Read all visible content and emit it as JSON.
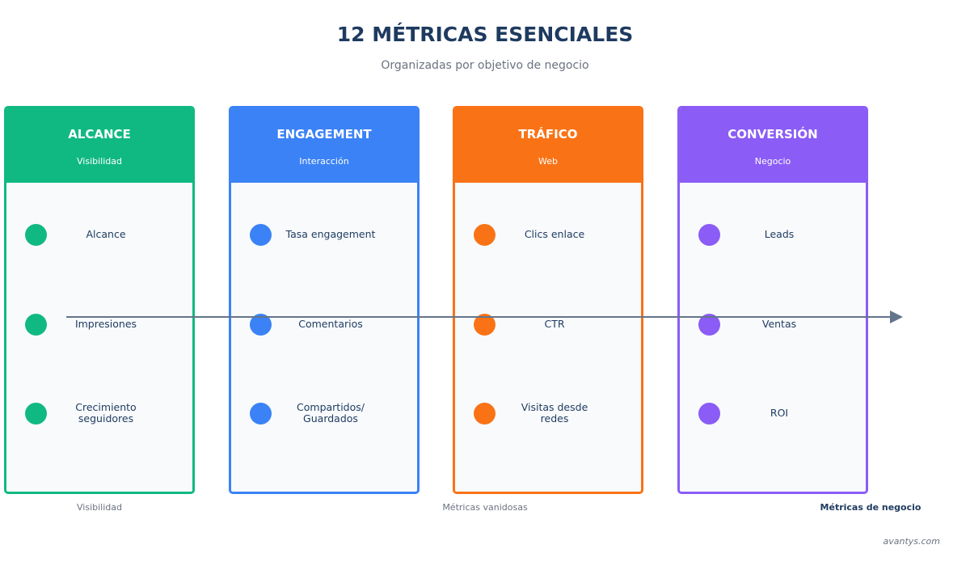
{
  "header": {
    "title": "12 MÉTRICAS ESENCIALES",
    "subtitle": "Organizadas por objetivo de negocio"
  },
  "columns": [
    {
      "title": "ALCANCE",
      "subtitle": "Visibilidad",
      "color": "#10b981",
      "metrics": [
        "Alcance",
        "Impresiones",
        "Crecimiento\nseguidores"
      ]
    },
    {
      "title": "ENGAGEMENT",
      "subtitle": "Interacción",
      "color": "#3b82f6",
      "metrics": [
        "Tasa engagement",
        "Comentarios",
        "Compartidos/\nGuardados"
      ]
    },
    {
      "title": "TRÁFICO",
      "subtitle": "Web",
      "color": "#f97316",
      "metrics": [
        "Clics enlace",
        "CTR",
        "Visitas desde\nredes"
      ]
    },
    {
      "title": "CONVERSIÓN",
      "subtitle": "Negocio",
      "color": "#8b5cf6",
      "metrics": [
        "Leads",
        "Ventas",
        "ROI"
      ]
    }
  ],
  "axis": {
    "start": "Visibilidad",
    "middle": "Métricas vanidosas",
    "end": "Métricas de negocio"
  },
  "watermark": "avantys.com"
}
